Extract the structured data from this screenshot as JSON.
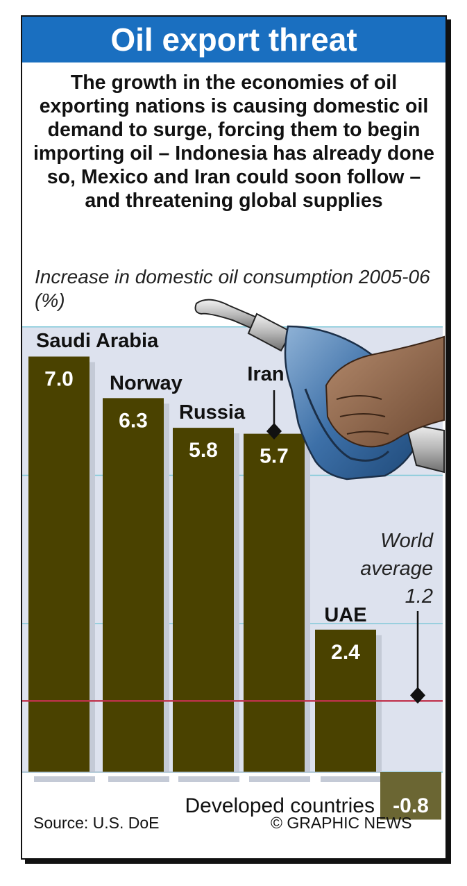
{
  "header": {
    "title": "Oil export threat",
    "intro": "The growth in the economies of oil exporting nations is causing domestic oil demand to surge, forcing them to begin importing oil – Indonesia has already done so, Mexico and Iran could soon follow – and threatening global supplies",
    "subtitle": "Increase in domestic oil consumption 2005-06 (%)"
  },
  "chart_data": {
    "type": "bar",
    "categories": [
      "Saudi Arabia",
      "Norway",
      "Russia",
      "Iran",
      "UAE"
    ],
    "values": [
      7.0,
      6.3,
      5.8,
      5.7,
      2.4
    ],
    "value_labels": [
      "7.0",
      "6.3",
      "5.8",
      "5.7",
      "2.4"
    ],
    "reference_line": {
      "label_lines": [
        "World",
        "average",
        "1.2"
      ],
      "value": 1.2
    },
    "extra_bar": {
      "category": "Developed countries",
      "value": -0.8,
      "value_label": "-0.8"
    },
    "ylim": [
      -0.8,
      7.0
    ],
    "grid": true,
    "colors": {
      "bar": "#4a4200",
      "developed_bar": "#6b6633",
      "reference_line": "#c0334d",
      "gridline": "#7fc8d8",
      "panel": "#dde2ee",
      "bar_shadow": "#c4cad6"
    }
  },
  "footer": {
    "source": "Source: U.S. DoE",
    "credit": "© GRAPHIC NEWS"
  }
}
